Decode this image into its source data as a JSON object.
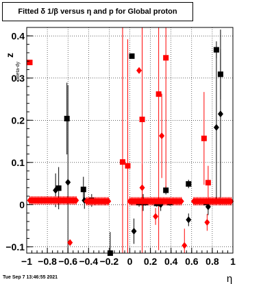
{
  "title_box": {
    "text": "Fitted δ 1/β versus η and p for Global proton"
  },
  "footer": {
    "timestamp": "Tue Sep  7 13:46:55 2021"
  },
  "chart_data": {
    "type": "scatter",
    "title": "Fitted δ 1/β versus η and p for Global proton",
    "xlabel": "η",
    "ylabel": "z",
    "ylabel_subscript": "dBeta-dy",
    "xlim": [
      -1,
      1
    ],
    "ylim": [
      -0.115,
      0.42
    ],
    "grid": true,
    "x_ticks": [
      "−1",
      "−0.8",
      "−0.6",
      "−0.4",
      "−0.2",
      "0",
      "0.2",
      "0.4",
      "0.6",
      "0.8",
      "1"
    ],
    "x_tick_values": [
      -1,
      -0.8,
      -0.6,
      -0.4,
      -0.2,
      0,
      0.2,
      0.4,
      0.6,
      0.8,
      1
    ],
    "y_ticks": [
      "−0.1",
      "0",
      "0.1",
      "0.2",
      "0.3",
      "0.4"
    ],
    "y_tick_values": [
      -0.1,
      0,
      0.1,
      0.2,
      0.3,
      0.4
    ],
    "colors": {
      "black": "#000000",
      "red": "#ff0000"
    },
    "series": [
      {
        "marker": "square",
        "color": "#000000",
        "points": [
          {
            "x": -0.69,
            "y": 0.039,
            "err": 0.05
          },
          {
            "x": -0.61,
            "y": 0.204,
            "err": 0.085
          },
          {
            "x": -0.45,
            "y": 0.036,
            "err": 0.03
          },
          {
            "x": -0.37,
            "y": 0.01,
            "err": 0.015
          },
          {
            "x": -0.19,
            "y": -0.115,
            "err": 0.05
          },
          {
            "x": 0.02,
            "y": 0.352,
            "err": 0.0
          },
          {
            "x": 0.09,
            "y": 0.005,
            "err": 0.01
          },
          {
            "x": 0.15,
            "y": 0.005,
            "err": 0.008
          },
          {
            "x": 0.26,
            "y": 0.003,
            "err": 0.008
          },
          {
            "x": 0.35,
            "y": 0.034,
            "err": 0.01
          },
          {
            "x": 0.39,
            "y": 0.005,
            "err": 0.008
          },
          {
            "x": 0.57,
            "y": 0.049,
            "err": 0.01
          },
          {
            "x": 0.74,
            "y": 0.005,
            "err": 0.006
          },
          {
            "x": 0.84,
            "y": 0.367,
            "err": 0.02
          },
          {
            "x": 0.88,
            "y": 0.309,
            "err": 0.06
          }
        ]
      },
      {
        "marker": "diamond",
        "color": "#000000",
        "points": [
          {
            "x": -0.72,
            "y": 0.034,
            "err": 0.04
          },
          {
            "x": -0.6,
            "y": 0.053,
            "err": 0.23
          },
          {
            "x": -0.44,
            "y": 0.01,
            "err": 0.02
          },
          {
            "x": 0.04,
            "y": -0.063,
            "err": 0.03
          },
          {
            "x": 0.13,
            "y": 0.005,
            "err": 0.02
          },
          {
            "x": 0.3,
            "y": 0.0,
            "err": 0.015
          },
          {
            "x": 0.57,
            "y": -0.036,
            "err": 0.015
          },
          {
            "x": 0.76,
            "y": -0.005,
            "err": 0.02
          },
          {
            "x": 0.84,
            "y": 0.183,
            "err": 0.18
          },
          {
            "x": 0.88,
            "y": 0.215,
            "err": 0.2
          }
        ]
      },
      {
        "marker": "square",
        "color": "#ff0000",
        "points": [
          {
            "x": -0.97,
            "y": 0.337,
            "err": 0.0
          },
          {
            "x": -0.07,
            "y": 0.101,
            "err": 0.35
          },
          {
            "x": -0.02,
            "y": 0.092,
            "err": 0.3
          },
          {
            "x": 0.12,
            "y": 0.202,
            "err": 0.35
          },
          {
            "x": 0.28,
            "y": 0.262,
            "err": 0.37
          },
          {
            "x": 0.35,
            "y": 0.348,
            "err": 0.32
          },
          {
            "x": 0.72,
            "y": 0.157,
            "err": 0.11
          },
          {
            "x": 0.76,
            "y": 0.052,
            "err": 0.04
          }
        ]
      },
      {
        "marker": "diamond",
        "color": "#ff0000",
        "points": [
          {
            "x": -0.58,
            "y": -0.09,
            "err": 0.0
          },
          {
            "x": 0.09,
            "y": 0.318,
            "err": 0.0
          },
          {
            "x": 0.12,
            "y": 0.04,
            "err": 0.055
          },
          {
            "x": 0.25,
            "y": -0.028,
            "err": 0.02
          },
          {
            "x": 0.31,
            "y": 0.163,
            "err": 0.1
          },
          {
            "x": 0.53,
            "y": -0.097,
            "err": 0.04
          },
          {
            "x": 0.75,
            "y": -0.042,
            "err": 0.02
          }
        ]
      },
      {
        "marker": "diamond-band",
        "color": "#ff0000",
        "x_start": -0.97,
        "x_end": -0.51,
        "x_step": 0.0125,
        "y": 0.01,
        "err": 0.01
      },
      {
        "marker": "diamond-band",
        "color": "#ff0000",
        "x_start": -0.42,
        "x_end": -0.2,
        "x_step": 0.0125,
        "y": 0.008,
        "err": 0.01
      },
      {
        "marker": "diamond-band",
        "color": "#ff0000",
        "x_start": 0.0,
        "x_end": 0.5,
        "x_step": 0.0125,
        "y": 0.008,
        "err": 0.01
      },
      {
        "marker": "diamond-band",
        "color": "#ff0000",
        "x_start": 0.62,
        "x_end": 0.99,
        "x_step": 0.0125,
        "y": 0.008,
        "err": 0.01
      }
    ]
  }
}
